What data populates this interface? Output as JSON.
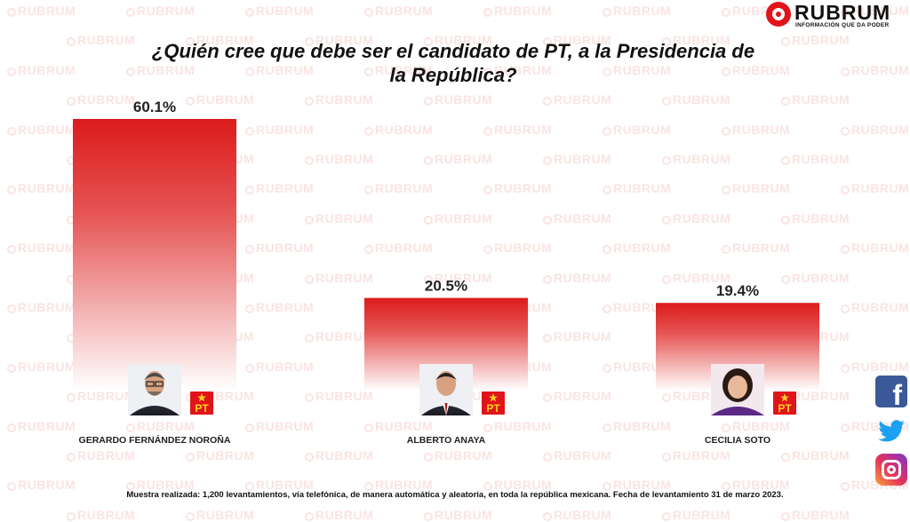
{
  "brand": {
    "name": "RUBRUM",
    "tagline": "INFORMACIÓN QUE DA PODER",
    "color": "#e0141a"
  },
  "title": "¿Quién cree que debe ser el candidato de PT, a la Presidencia de la República?",
  "footnote": "Muestra realizada: 1,200 levantamientos, vía telefónica, de manera automática y aleatoria, en toda la república mexicana. Fecha de levantamiento 31 de marzo 2023.",
  "party_badge": "PT",
  "social": {
    "facebook": "facebook-icon",
    "twitter": "twitter-icon",
    "instagram": "instagram-icon"
  },
  "chart_data": {
    "type": "bar",
    "title": "¿Quién cree que debe ser el candidato de PT, a la Presidencia de la República?",
    "categories": [
      "GERARDO FERNÁNDEZ NOROÑA",
      "ALBERTO ANAYA",
      "CECILIA SOTO"
    ],
    "values": [
      60.1,
      20.5,
      19.4
    ],
    "value_labels": [
      "60.1%",
      "20.5%",
      "19.4%"
    ],
    "unit": "%",
    "xlabel": "",
    "ylabel": "",
    "grid": false,
    "legend": "none",
    "bar_color": "#e0141a"
  }
}
